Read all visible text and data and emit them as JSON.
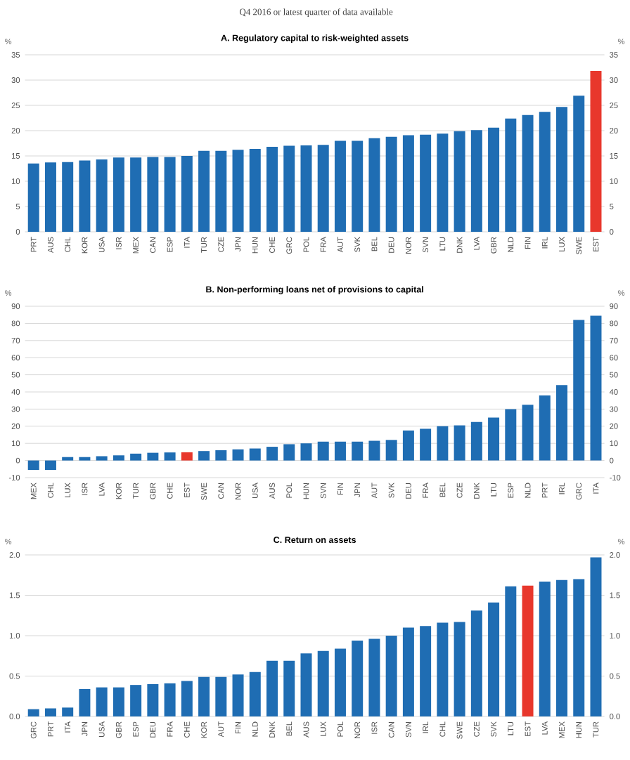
{
  "chart_data": [
    {
      "type": "bar",
      "subtitle": "Q4 2016 or latest quarter of data available",
      "title": "A. Regulatory capital to risk-weighted assets",
      "ylabel": "%",
      "y2label": "%",
      "categories": [
        "PRT",
        "AUS",
        "CHL",
        "KOR",
        "USA",
        "ISR",
        "MEX",
        "CAN",
        "ESP",
        "ITA",
        "TUR",
        "CZE",
        "JPN",
        "HUN",
        "CHE",
        "GRC",
        "POL",
        "FRA",
        "AUT",
        "SVK",
        "BEL",
        "DEU",
        "NOR",
        "SVN",
        "LTU",
        "DNK",
        "LVA",
        "GBR",
        "NLD",
        "FIN",
        "IRL",
        "LUX",
        "SWE",
        "EST"
      ],
      "values": [
        13.5,
        13.7,
        13.8,
        14.1,
        14.3,
        14.7,
        14.7,
        14.8,
        14.8,
        15.0,
        16.0,
        16.0,
        16.2,
        16.4,
        16.8,
        17.0,
        17.1,
        17.2,
        18.0,
        18.0,
        18.5,
        18.8,
        19.1,
        19.2,
        19.4,
        19.9,
        20.1,
        20.6,
        22.4,
        23.1,
        23.7,
        24.7,
        26.9,
        31.8
      ],
      "colors": [
        "#1f6db3",
        "#1f6db3",
        "#1f6db3",
        "#1f6db3",
        "#1f6db3",
        "#1f6db3",
        "#1f6db3",
        "#1f6db3",
        "#1f6db3",
        "#1f6db3",
        "#1f6db3",
        "#1f6db3",
        "#1f6db3",
        "#1f6db3",
        "#1f6db3",
        "#1f6db3",
        "#1f6db3",
        "#1f6db3",
        "#1f6db3",
        "#1f6db3",
        "#1f6db3",
        "#1f6db3",
        "#1f6db3",
        "#1f6db3",
        "#1f6db3",
        "#1f6db3",
        "#1f6db3",
        "#1f6db3",
        "#1f6db3",
        "#1f6db3",
        "#1f6db3",
        "#1f6db3",
        "#1f6db3",
        "#e8372c"
      ],
      "ylim": [
        0,
        35
      ],
      "yticks": [
        0,
        5,
        10,
        15,
        20,
        25,
        30,
        35
      ],
      "y2lim": [
        0,
        35
      ],
      "y2ticks": [
        0,
        5,
        10,
        15,
        20,
        25,
        30,
        35
      ],
      "grid": "y"
    },
    {
      "type": "bar",
      "title": "B. Non-performing loans net of provisions to capital",
      "ylabel": "%",
      "y2label": "%",
      "categories": [
        "MEX",
        "CHL",
        "LUX",
        "ISR",
        "LVA",
        "KOR",
        "TUR",
        "GBR",
        "CHE",
        "EST",
        "SWE",
        "CAN",
        "NOR",
        "USA",
        "AUS",
        "POL",
        "HUN",
        "SVN",
        "FIN",
        "JPN",
        "AUT",
        "SVK",
        "DEU",
        "FRA",
        "BEL",
        "CZE",
        "DNK",
        "LTU",
        "ESP",
        "NLD",
        "PRT",
        "IRL",
        "GRC",
        "ITA"
      ],
      "values": [
        -5.5,
        -5.5,
        2.0,
        2.0,
        2.5,
        3.0,
        4.0,
        4.5,
        4.7,
        4.8,
        5.5,
        6.0,
        6.5,
        7.0,
        8.0,
        9.5,
        10.0,
        11.0,
        11.0,
        11.0,
        11.5,
        12.0,
        17.5,
        18.5,
        20.0,
        20.5,
        22.5,
        25.0,
        30.0,
        32.5,
        38.0,
        44.0,
        82.0,
        84.5
      ],
      "colors": [
        "#1f6db3",
        "#1f6db3",
        "#1f6db3",
        "#1f6db3",
        "#1f6db3",
        "#1f6db3",
        "#1f6db3",
        "#1f6db3",
        "#1f6db3",
        "#e8372c",
        "#1f6db3",
        "#1f6db3",
        "#1f6db3",
        "#1f6db3",
        "#1f6db3",
        "#1f6db3",
        "#1f6db3",
        "#1f6db3",
        "#1f6db3",
        "#1f6db3",
        "#1f6db3",
        "#1f6db3",
        "#1f6db3",
        "#1f6db3",
        "#1f6db3",
        "#1f6db3",
        "#1f6db3",
        "#1f6db3",
        "#1f6db3",
        "#1f6db3",
        "#1f6db3",
        "#1f6db3",
        "#1f6db3",
        "#1f6db3"
      ],
      "ylim": [
        -10,
        90
      ],
      "yticks": [
        -10,
        0,
        10,
        20,
        30,
        40,
        50,
        60,
        70,
        80,
        90
      ],
      "y2lim": [
        -10,
        90
      ],
      "y2ticks": [
        -10,
        0,
        10,
        20,
        30,
        40,
        50,
        60,
        70,
        80,
        90
      ],
      "grid": "y"
    },
    {
      "type": "bar",
      "title": "C. Return on assets",
      "ylabel": "%",
      "y2label": "%",
      "categories": [
        "GRC",
        "PRT",
        "ITA",
        "JPN",
        "USA",
        "GBR",
        "ESP",
        "DEU",
        "FRA",
        "CHE",
        "KOR",
        "AUT",
        "FIN",
        "NLD",
        "DNK",
        "BEL",
        "AUS",
        "LUX",
        "POL",
        "NOR",
        "ISR",
        "CAN",
        "SVN",
        "IRL",
        "CHL",
        "SWE",
        "CZE",
        "SVK",
        "LTU",
        "EST",
        "LVA",
        "MEX",
        "HUN",
        "TUR"
      ],
      "values": [
        0.09,
        0.1,
        0.11,
        0.34,
        0.36,
        0.36,
        0.39,
        0.4,
        0.41,
        0.44,
        0.49,
        0.49,
        0.52,
        0.55,
        0.69,
        0.69,
        0.78,
        0.81,
        0.84,
        0.94,
        0.96,
        1.0,
        1.1,
        1.12,
        1.16,
        1.17,
        1.31,
        1.41,
        1.61,
        1.62,
        1.67,
        1.69,
        1.7,
        1.97
      ],
      "colors": [
        "#1f6db3",
        "#1f6db3",
        "#1f6db3",
        "#1f6db3",
        "#1f6db3",
        "#1f6db3",
        "#1f6db3",
        "#1f6db3",
        "#1f6db3",
        "#1f6db3",
        "#1f6db3",
        "#1f6db3",
        "#1f6db3",
        "#1f6db3",
        "#1f6db3",
        "#1f6db3",
        "#1f6db3",
        "#1f6db3",
        "#1f6db3",
        "#1f6db3",
        "#1f6db3",
        "#1f6db3",
        "#1f6db3",
        "#1f6db3",
        "#1f6db3",
        "#1f6db3",
        "#1f6db3",
        "#1f6db3",
        "#1f6db3",
        "#e8372c",
        "#1f6db3",
        "#1f6db3",
        "#1f6db3",
        "#1f6db3"
      ],
      "ylim": [
        0,
        2
      ],
      "yticks": [
        {
          "value": 0,
          "label": "0.0"
        },
        {
          "value": 0.5,
          "label": "0.5"
        },
        {
          "value": 1,
          "label": "1.0"
        },
        {
          "value": 1.5,
          "label": "1.5"
        },
        {
          "value": 2,
          "label": "2.0"
        }
      ],
      "y2lim": [
        0,
        2
      ],
      "y2ticks": [
        {
          "value": 0,
          "label": "0.0"
        },
        {
          "value": 0.5,
          "label": "0.5"
        },
        {
          "value": 1,
          "label": "1.0"
        },
        {
          "value": 1.5,
          "label": "1.5"
        },
        {
          "value": 2,
          "label": "2.0"
        }
      ],
      "grid": "y"
    }
  ]
}
